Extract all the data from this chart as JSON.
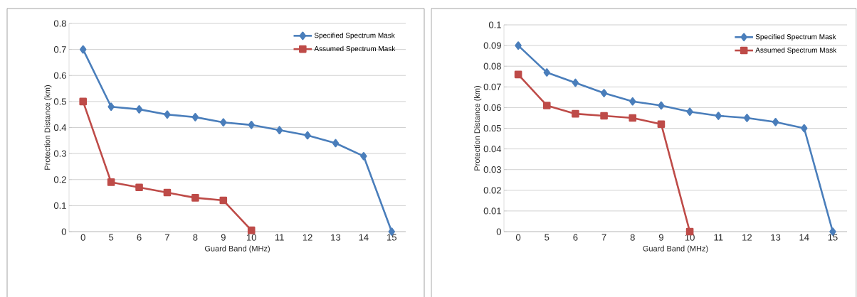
{
  "chart_data": [
    {
      "type": "line",
      "xlabel": "Guard Band (MHz)",
      "ylabel": "Protection Distance (km)",
      "categories": [
        "0",
        "5",
        "6",
        "7",
        "8",
        "9",
        "10",
        "11",
        "12",
        "13",
        "14",
        "15"
      ],
      "ylim": [
        0,
        0.8
      ],
      "yticks": [
        0,
        0.1,
        0.2,
        0.3,
        0.4,
        0.5,
        0.6,
        0.7,
        0.8
      ],
      "grid": "y",
      "legend": "top right",
      "line_style": "solid",
      "series": [
        {
          "name": "Specified Spectrum Mask",
          "color": "#4a7ebb",
          "marker": "diamond",
          "values": [
            0.7,
            0.48,
            0.47,
            0.45,
            0.44,
            0.42,
            0.41,
            0.39,
            0.37,
            0.34,
            0.29,
            0
          ]
        },
        {
          "name": "Assumed Spectrum Mask",
          "color": "#be4b48",
          "marker": "square",
          "values": [
            0.5,
            0.19,
            0.17,
            0.15,
            0.13,
            0.12,
            0.005,
            null,
            null,
            null,
            null,
            null
          ]
        }
      ]
    },
    {
      "type": "line",
      "xlabel": "Guard Band (MHz)",
      "ylabel": "Protection Distance (km)",
      "categories": [
        "0",
        "5",
        "6",
        "7",
        "8",
        "9",
        "10",
        "11",
        "12",
        "13",
        "14",
        "15"
      ],
      "ylim": [
        0,
        0.1
      ],
      "yticks": [
        0,
        0.01,
        0.02,
        0.03,
        0.04,
        0.05,
        0.06,
        0.07,
        0.08,
        0.09,
        0.1
      ],
      "grid": "y",
      "legend": "top right",
      "line_style": "solid",
      "series": [
        {
          "name": "Specified Spectrum Mask",
          "color": "#4a7ebb",
          "marker": "diamond",
          "values": [
            0.09,
            0.077,
            0.072,
            0.067,
            0.063,
            0.061,
            0.058,
            0.056,
            0.055,
            0.053,
            0.05,
            0
          ]
        },
        {
          "name": "Assumed Spectrum Mask",
          "color": "#be4b48",
          "marker": "square",
          "values": [
            0.076,
            0.061,
            0.057,
            0.056,
            0.055,
            0.052,
            0,
            null,
            null,
            null,
            null,
            null
          ]
        }
      ]
    }
  ]
}
